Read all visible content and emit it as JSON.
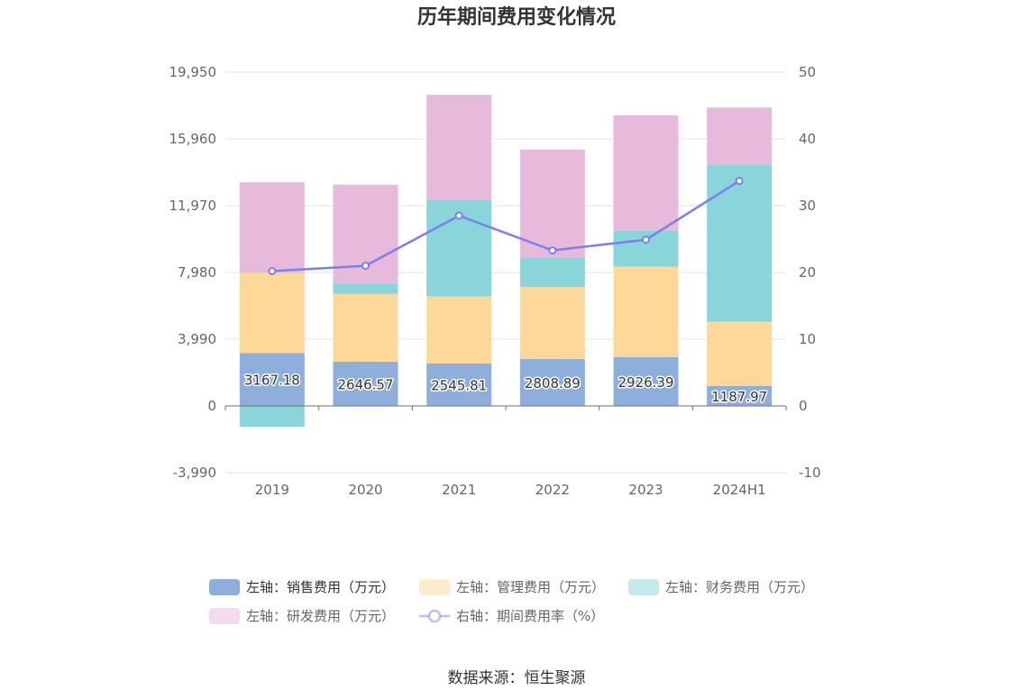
{
  "chart_data": {
    "type": "bar",
    "title": "历年期间费用变化情况",
    "categories": [
      "2019",
      "2020",
      "2021",
      "2022",
      "2023",
      "2024H1"
    ],
    "stacked": true,
    "y_left": {
      "min": -3990,
      "max": 19950,
      "ticks": [
        "19,950",
        "15,960",
        "11,970",
        "7,980",
        "3,990",
        "0",
        "-3,990"
      ],
      "tick_values": [
        19950,
        15960,
        11970,
        7980,
        3990,
        0,
        -3990
      ]
    },
    "y_right": {
      "min": -10,
      "max": 50,
      "ticks": [
        "50",
        "40",
        "30",
        "20",
        "10",
        "0",
        "-10"
      ],
      "tick_values": [
        50,
        40,
        30,
        20,
        10,
        0,
        -10
      ]
    },
    "series": [
      {
        "name": "左轴：销售费用（万元）",
        "type": "bar",
        "axis": "left",
        "color": "#8eaedc",
        "values": [
          3167.18,
          2646.57,
          2545.81,
          2808.89,
          2926.39,
          1187.97
        ],
        "labels": [
          "3167.18",
          "2646.57",
          "2545.81",
          "2808.89",
          "2926.39",
          "1187.97"
        ]
      },
      {
        "name": "左轴：管理费用（万元）",
        "type": "bar",
        "axis": "left",
        "color": "#fed899",
        "values": [
          4800,
          4050,
          4000,
          4300,
          5400,
          3850
        ]
      },
      {
        "name": "左轴：财务费用（万元）",
        "type": "bar",
        "axis": "left",
        "color": "#89d5d9",
        "values": [
          -1250,
          630,
          5750,
          1750,
          2150,
          9400
        ]
      },
      {
        "name": "左轴：研发费用（万元）",
        "type": "bar",
        "axis": "left",
        "color": "#e7b9db",
        "values": [
          5400,
          5900,
          6300,
          6450,
          6900,
          3400
        ]
      },
      {
        "name": "右轴：期间费用率（%）",
        "type": "line",
        "axis": "right",
        "color": "#7b7ff2",
        "values": [
          20.2,
          21.0,
          28.5,
          23.3,
          24.9,
          33.7
        ]
      }
    ],
    "legend": "bottom-center",
    "grid": true
  },
  "source": "数据来源：恒生聚源"
}
